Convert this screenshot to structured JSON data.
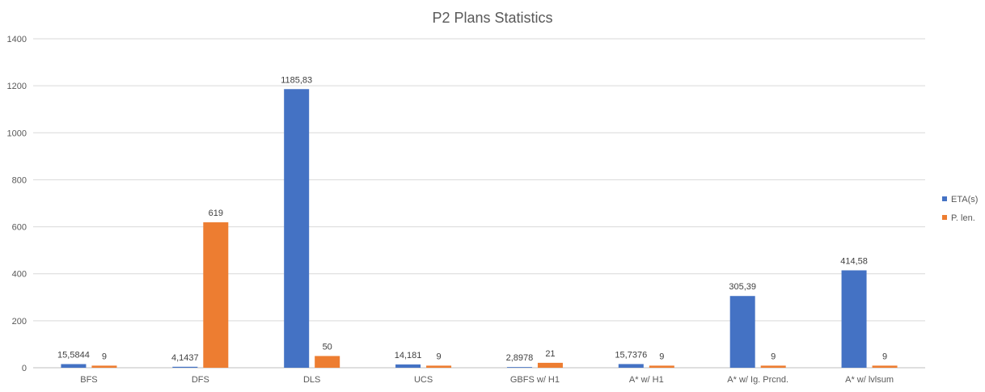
{
  "chart_data": {
    "type": "bar",
    "title": "P2 Plans Statistics",
    "xlabel": "",
    "ylabel": "",
    "ylim": [
      0,
      1400
    ],
    "yticks": [
      0,
      200,
      400,
      600,
      800,
      1000,
      1200,
      1400
    ],
    "grid": true,
    "legend_position": "right",
    "categories": [
      "BFS",
      "DFS",
      "DLS",
      "UCS",
      "GBFS w/ H1",
      "A* w/ H1",
      "A* w/ Ig. Prcnd.",
      "A* w/ lvlsum"
    ],
    "series": [
      {
        "name": "ETA(s)",
        "color": "#4472C4",
        "values": [
          15.5844,
          4.1437,
          1185.83,
          14.181,
          2.8978,
          15.7376,
          305.39,
          414.58
        ],
        "labels": [
          "15,5844",
          "4,1437",
          "1185,83",
          "14,181",
          "2,8978",
          "15,7376",
          "305,39",
          "414,58"
        ]
      },
      {
        "name": "P. len.",
        "color": "#ED7D31",
        "values": [
          9,
          619,
          50,
          9,
          21,
          9,
          9,
          9
        ],
        "labels": [
          "9",
          "619",
          "50",
          "9",
          "21",
          "9",
          "9",
          "9"
        ]
      }
    ]
  }
}
